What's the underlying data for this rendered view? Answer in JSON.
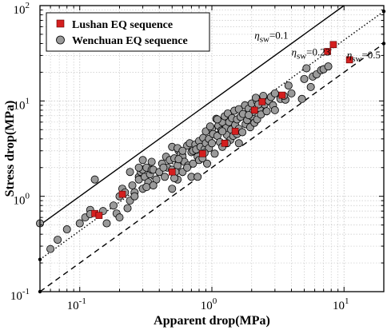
{
  "colors": {
    "lushan": "#d41f1f",
    "wenchuan": "#9a9a9a",
    "grid": "#c8c8c8",
    "axis": "#000000"
  },
  "chart_data": {
    "type": "scatter",
    "title": "",
    "xlabel": "Apparent drop(MPa)",
    "ylabel": "Stress drop(MPa)",
    "xscale": "log",
    "yscale": "log",
    "xlim": [
      0.05,
      20
    ],
    "ylim": [
      0.1,
      100
    ],
    "grid": true,
    "legend_position": "top-left",
    "x_ticks": [
      {
        "value": 0.1,
        "base": "10",
        "exp": "-1"
      },
      {
        "value": 1,
        "base": "10",
        "exp": "0"
      },
      {
        "value": 10,
        "base": "10",
        "exp": "1"
      }
    ],
    "y_ticks": [
      {
        "value": 0.1,
        "base": "10",
        "exp": "-1"
      },
      {
        "value": 1,
        "base": "10",
        "exp": "0"
      },
      {
        "value": 10,
        "base": "10",
        "exp": "1"
      },
      {
        "value": 100,
        "base": "10",
        "exp": "2"
      }
    ],
    "reference_lines": [
      {
        "eta_symbol": "η",
        "eta_sub": "sw",
        "value_label": "=0.1",
        "factor": 10,
        "style": "solid",
        "label_at": [
          2.1,
          45
        ]
      },
      {
        "eta_symbol": "η",
        "eta_sub": "sw",
        "value_label": "=0.23",
        "factor": 4.35,
        "style": "dotted",
        "label_at": [
          4.0,
          30
        ]
      },
      {
        "eta_symbol": "η",
        "eta_sub": "sw",
        "value_label": "=0.5",
        "factor": 2,
        "style": "dashed",
        "label_at": [
          10.5,
          28
        ]
      }
    ],
    "series": [
      {
        "name": "Lushan EQ sequence",
        "marker": "square",
        "points": [
          [
            0.13,
            0.66
          ],
          [
            0.14,
            0.63
          ],
          [
            0.21,
            1.05
          ],
          [
            0.5,
            1.8
          ],
          [
            0.85,
            2.8
          ],
          [
            1.25,
            3.6
          ],
          [
            1.5,
            4.8
          ],
          [
            2.1,
            8.0
          ],
          [
            2.4,
            9.8
          ],
          [
            3.4,
            11.5
          ],
          [
            7.5,
            33
          ],
          [
            8.3,
            39
          ],
          [
            11,
            27
          ]
        ]
      },
      {
        "name": "Wenchuan EQ sequence",
        "marker": "circle",
        "points": [
          [
            0.05,
            0.52
          ],
          [
            0.06,
            0.28
          ],
          [
            0.068,
            0.35
          ],
          [
            0.08,
            0.45
          ],
          [
            0.1,
            0.52
          ],
          [
            0.11,
            0.6
          ],
          [
            0.12,
            0.72
          ],
          [
            0.12,
            0.65
          ],
          [
            0.13,
            1.5
          ],
          [
            0.15,
            0.7
          ],
          [
            0.16,
            0.52
          ],
          [
            0.18,
            0.8
          ],
          [
            0.19,
            0.66
          ],
          [
            0.2,
            1.0
          ],
          [
            0.2,
            0.6
          ],
          [
            0.21,
            1.2
          ],
          [
            0.22,
            1.1
          ],
          [
            0.23,
            0.75
          ],
          [
            0.24,
            0.9
          ],
          [
            0.25,
            1.3
          ],
          [
            0.26,
            1.1
          ],
          [
            0.28,
            1.6
          ],
          [
            0.28,
            1.5
          ],
          [
            0.29,
            1.8
          ],
          [
            0.3,
            1.9
          ],
          [
            0.3,
            1.2
          ],
          [
            0.31,
            1.6
          ],
          [
            0.32,
            2.0
          ],
          [
            0.33,
            1.4
          ],
          [
            0.34,
            1.7
          ],
          [
            0.35,
            1.9
          ],
          [
            0.35,
            2.3
          ],
          [
            0.36,
            1.9
          ],
          [
            0.38,
            1.5
          ],
          [
            0.4,
            1.8
          ],
          [
            0.42,
            2.2
          ],
          [
            0.44,
            1.6
          ],
          [
            0.45,
            2.6
          ],
          [
            0.46,
            2.0
          ],
          [
            0.48,
            2.4
          ],
          [
            0.5,
            1.9
          ],
          [
            0.5,
            1.2
          ],
          [
            0.52,
            2.5
          ],
          [
            0.55,
            2.1
          ],
          [
            0.55,
            1.5
          ],
          [
            0.56,
            3.0
          ],
          [
            0.58,
            2.8
          ],
          [
            0.6,
            2.6
          ],
          [
            0.6,
            1.8
          ],
          [
            0.62,
            2.3
          ],
          [
            0.65,
            3.4
          ],
          [
            0.66,
            2.1
          ],
          [
            0.68,
            3.6
          ],
          [
            0.7,
            2.9
          ],
          [
            0.72,
            2.2
          ],
          [
            0.72,
            3.0
          ],
          [
            0.75,
            3.5
          ],
          [
            0.76,
            3.1
          ],
          [
            0.78,
            2.6
          ],
          [
            0.8,
            3.8
          ],
          [
            0.8,
            2.4
          ],
          [
            0.82,
            3.3
          ],
          [
            0.85,
            2.5
          ],
          [
            0.86,
            4.1
          ],
          [
            0.88,
            3.1
          ],
          [
            0.9,
            4.8
          ],
          [
            0.9,
            3.6
          ],
          [
            0.92,
            2.2
          ],
          [
            0.95,
            3.2
          ],
          [
            0.95,
            4.0
          ],
          [
            1.0,
            5.1
          ],
          [
            1.0,
            3.6
          ],
          [
            1.02,
            4.5
          ],
          [
            1.05,
            2.8
          ],
          [
            1.08,
            6.5
          ],
          [
            1.1,
            4.3
          ],
          [
            1.12,
            5.5
          ],
          [
            1.15,
            3.7
          ],
          [
            1.18,
            4.9
          ],
          [
            1.2,
            6.0
          ],
          [
            1.2,
            3.3
          ],
          [
            1.25,
            6.9
          ],
          [
            1.28,
            5.2
          ],
          [
            1.3,
            4.4
          ],
          [
            1.32,
            7.4
          ],
          [
            1.35,
            6.0
          ],
          [
            1.38,
            3.9
          ],
          [
            1.4,
            5.0
          ],
          [
            1.42,
            6.6
          ],
          [
            1.45,
            4.3
          ],
          [
            1.48,
            7.9
          ],
          [
            1.5,
            5.6
          ],
          [
            1.55,
            6.4
          ],
          [
            1.55,
            4.5
          ],
          [
            1.6,
            8.2
          ],
          [
            1.6,
            5.1
          ],
          [
            1.65,
            6.8
          ],
          [
            1.7,
            4.7
          ],
          [
            1.72,
            7.3
          ],
          [
            1.78,
            9.0
          ],
          [
            1.8,
            5.7
          ],
          [
            1.85,
            6.3
          ],
          [
            1.9,
            8.3
          ],
          [
            1.95,
            5.3
          ],
          [
            2.0,
            9.4
          ],
          [
            2.0,
            6.9
          ],
          [
            2.05,
            7.7
          ],
          [
            2.1,
            5.9
          ],
          [
            2.2,
            9.9
          ],
          [
            2.2,
            6.4
          ],
          [
            2.3,
            8.4
          ],
          [
            2.35,
            7.2
          ],
          [
            2.4,
            10.4
          ],
          [
            2.5,
            9.2
          ],
          [
            2.6,
            7.8
          ],
          [
            2.7,
            10.0
          ],
          [
            2.8,
            11.0
          ],
          [
            2.9,
            9.0
          ],
          [
            3.0,
            8.0
          ],
          [
            3.0,
            12.0
          ],
          [
            3.3,
            10.5
          ],
          [
            3.6,
            10.3
          ],
          [
            3.8,
            14.5
          ],
          [
            4.0,
            12.0
          ],
          [
            5.0,
            17.0
          ],
          [
            5.2,
            22.0
          ],
          [
            5.6,
            14.0
          ],
          [
            5.8,
            18.0
          ],
          [
            6.2,
            19.0
          ],
          [
            6.7,
            21.0
          ],
          [
            7.0,
            21.5
          ],
          [
            7.6,
            23.0
          ],
          [
            3.5,
            11.3
          ],
          [
            2.15,
            10.8
          ],
          [
            2.45,
            11.3
          ],
          [
            1.1,
            6.4
          ],
          [
            0.53,
            1.8
          ],
          [
            0.43,
            2.0
          ],
          [
            0.5,
            3.3
          ],
          [
            0.55,
            3.2
          ],
          [
            0.6,
            3.0
          ],
          [
            0.65,
            2.0
          ],
          [
            0.7,
            1.6
          ],
          [
            0.3,
            2.4
          ],
          [
            0.28,
            2.0
          ],
          [
            0.26,
            1.0
          ],
          [
            0.24,
            1.8
          ],
          [
            0.52,
            1.55
          ],
          [
            0.78,
            1.6
          ],
          [
            0.32,
            1.25
          ],
          [
            1.6,
            3.6
          ],
          [
            1.3,
            3.6
          ],
          [
            4.8,
            10.5
          ],
          [
            0.97,
            5.4
          ],
          [
            1.9,
            7.1
          ],
          [
            2.25,
            9.2
          ],
          [
            0.36,
            1.3
          ],
          [
            0.88,
            2.85
          ],
          [
            1.2,
            4.8
          ],
          [
            0.56,
            2.45
          ]
        ]
      }
    ]
  }
}
